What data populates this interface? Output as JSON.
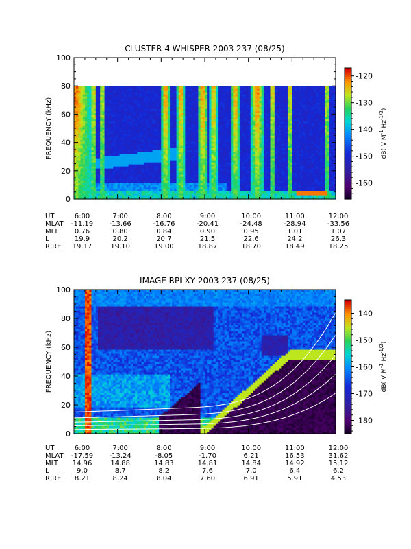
{
  "chart_data": [
    {
      "type": "heatmap",
      "title": "CLUSTER 4 WHISPER 2003 237 (08/25)",
      "ylabel": "FREQUENCY (kHz)",
      "ylim": [
        0,
        100
      ],
      "yticks": [
        "0",
        "20",
        "40",
        "60",
        "80",
        "100"
      ],
      "colorbar": {
        "label_prefix": "dB( V M",
        "label_exp1": "-1",
        "label_mid": " Hz",
        "label_exp2": "-1/2",
        "label_suffix": ")",
        "range": [
          -166,
          -117
        ],
        "ticks": [
          "-120",
          "-130",
          "-140",
          "-150",
          "-160"
        ],
        "tick_values": [
          -120,
          -130,
          -140,
          -150,
          -160
        ]
      },
      "data_top_khz": 80,
      "xaxis_rows": [
        {
          "label": "UT",
          "values": [
            "6:00",
            "7:00",
            "8:00",
            "9:00",
            "10:00",
            "11:00",
            "12:00"
          ]
        },
        {
          "label": "MLAT",
          "values": [
            "-11.19",
            "-13.66",
            "-16.76",
            "-20.41",
            "-24.48",
            "-28.94",
            "-33.56"
          ]
        },
        {
          "label": "MLT",
          "values": [
            "0.76",
            "0.80",
            "0.84",
            "0.90",
            "0.95",
            "1.01",
            "1.07"
          ]
        },
        {
          "label": "L",
          "values": [
            "19.9",
            "20.2",
            "20.7",
            "21.5",
            "22.6",
            "24.2",
            "26.3"
          ]
        },
        {
          "label": "R,RE",
          "values": [
            "19.17",
            "19.10",
            "19.00",
            "18.87",
            "18.70",
            "18.49",
            "18.25"
          ]
        }
      ]
    },
    {
      "type": "heatmap",
      "title": "IMAGE RPI XY 2003 237 (08/25)",
      "ylabel": "FREQUENCY (kHz)",
      "ylim": [
        0,
        100
      ],
      "yticks": [
        "0",
        "20",
        "40",
        "60",
        "80",
        "100"
      ],
      "colorbar": {
        "label_prefix": "dB( V M",
        "label_exp1": "-1",
        "label_mid": " Hz",
        "label_exp2": "-1/2",
        "label_suffix": ")",
        "range": [
          -185,
          -135
        ],
        "ticks": [
          "-140",
          "-150",
          "-160",
          "-170",
          "-180"
        ],
        "tick_values": [
          -140,
          -150,
          -160,
          -170,
          -180
        ]
      },
      "overlay_curves": "white",
      "xaxis_rows": [
        {
          "label": "UT",
          "values": [
            "6:00",
            "7:00",
            "8:00",
            "9:00",
            "10:00",
            "11:00",
            "12:00"
          ]
        },
        {
          "label": "MLAT",
          "values": [
            "-17.59",
            "-13.24",
            "-8.05",
            "-1.70",
            "6.21",
            "16.53",
            "31.62"
          ]
        },
        {
          "label": "MLT",
          "values": [
            "14.96",
            "14.88",
            "14.83",
            "14.81",
            "14.84",
            "14.92",
            "15.12"
          ]
        },
        {
          "label": "L",
          "values": [
            "9.0",
            "8.7",
            "8.2",
            "7.6",
            "7.0",
            "6.4",
            "6.2"
          ]
        },
        {
          "label": "R,RE",
          "values": [
            "8.21",
            "8.24",
            "8.04",
            "7.60",
            "6.91",
            "5.91",
            "4.53"
          ]
        }
      ]
    }
  ]
}
